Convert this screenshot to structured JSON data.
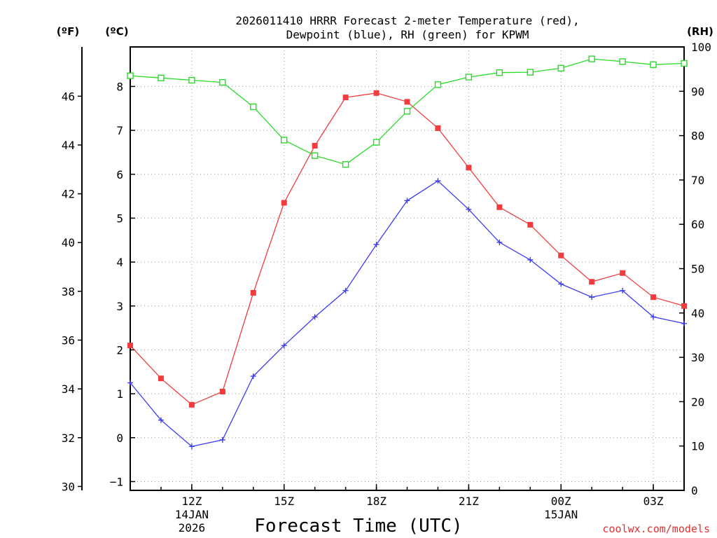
{
  "chart_data": {
    "type": "line",
    "title_line1": "2026011410 HRRR Forecast 2-meter Temperature (red),",
    "title_line2": "Dewpoint (blue), RH (green) for KPWM",
    "left_outer_unit": "(ºF)",
    "left_inner_unit": "(ºC)",
    "right_unit": "(RH)",
    "xlabel": "Forecast Time (UTC)",
    "credit": "coolwx.com/models",
    "x_hours": [
      10,
      11,
      12,
      13,
      14,
      15,
      16,
      17,
      18,
      19,
      20,
      21,
      22,
      23,
      24,
      25,
      26,
      27,
      28
    ],
    "xlim": [
      10,
      28
    ],
    "x_ticks": [
      {
        "hour": 12,
        "label": "12Z",
        "sub1": "14JAN",
        "sub2": "2026"
      },
      {
        "hour": 15,
        "label": "15Z",
        "sub1": "",
        "sub2": ""
      },
      {
        "hour": 18,
        "label": "18Z",
        "sub1": "",
        "sub2": ""
      },
      {
        "hour": 21,
        "label": "21Z",
        "sub1": "",
        "sub2": ""
      },
      {
        "hour": 24,
        "label": "00Z",
        "sub1": "15JAN",
        "sub2": ""
      },
      {
        "hour": 27,
        "label": "03Z",
        "sub1": "",
        "sub2": ""
      }
    ],
    "c_range": [
      -1.2,
      8.9
    ],
    "c_ticks": [
      -1,
      0,
      1,
      2,
      3,
      4,
      5,
      6,
      7,
      8
    ],
    "c_tick_labels": [
      "−1",
      "0",
      "1",
      "2",
      "3",
      "4",
      "5",
      "6",
      "7",
      "8"
    ],
    "f_ticks": [
      30,
      32,
      34,
      36,
      38,
      40,
      42,
      44,
      46
    ],
    "rh_range": [
      0,
      100
    ],
    "rh_ticks": [
      0,
      10,
      20,
      30,
      40,
      50,
      60,
      70,
      80,
      90,
      100
    ],
    "series": [
      {
        "name": "Temperature",
        "unit": "C",
        "color": "#f03c3c",
        "marker": "filled-square",
        "values": [
          2.1,
          1.35,
          0.75,
          1.05,
          3.3,
          5.35,
          6.65,
          7.75,
          7.85,
          7.65,
          7.05,
          6.15,
          5.25,
          4.85,
          4.15,
          3.55,
          3.75,
          3.2,
          3.0
        ]
      },
      {
        "name": "Dewpoint",
        "unit": "C",
        "color": "#3c3cf0",
        "marker": "plus",
        "values": [
          1.25,
          0.4,
          -0.2,
          -0.05,
          1.4,
          2.1,
          2.75,
          3.35,
          4.4,
          5.4,
          5.85,
          5.2,
          4.45,
          4.05,
          3.5,
          3.2,
          3.35,
          2.75,
          2.6
        ]
      },
      {
        "name": "RH",
        "unit": "%",
        "color": "#28dc28",
        "marker": "open-square",
        "values": [
          93.5,
          93,
          92.5,
          92,
          86.5,
          79,
          75.5,
          73.5,
          78.5,
          85.5,
          91.5,
          93.2,
          94.2,
          94.3,
          95.2,
          97.3,
          96.7,
          96,
          96.3
        ]
      }
    ]
  }
}
